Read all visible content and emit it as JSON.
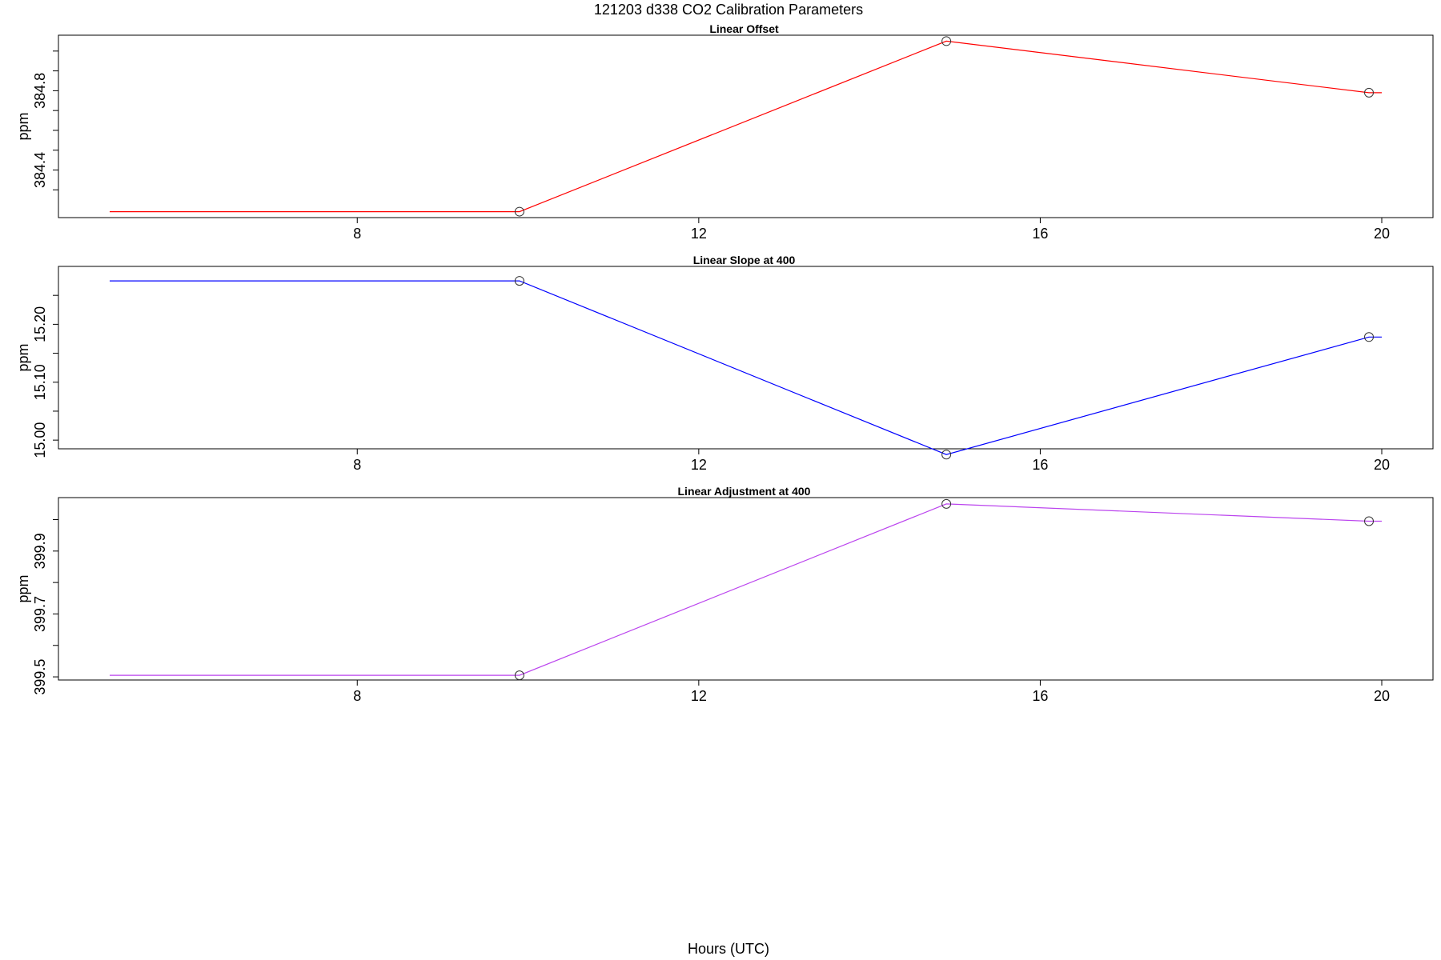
{
  "figure": {
    "title": "121203   d338   CO2 Calibration Parameters",
    "xlabel": "Hours (UTC)"
  },
  "chart_data": [
    {
      "type": "line",
      "title": "Linear Offset",
      "ylabel": "ppm",
      "xlabel": "",
      "xlim": [
        4.5,
        20.6
      ],
      "ylim": [
        384.16,
        385.08
      ],
      "x_ticks": [
        8,
        12,
        16,
        20
      ],
      "x_tick_labels": [
        "8",
        "12",
        "16",
        "20"
      ],
      "y_ticks": [
        384.3,
        384.4,
        384.5,
        384.6,
        384.7,
        384.8,
        384.9,
        385.0
      ],
      "y_tick_labels": [
        "",
        "384.4",
        "",
        "",
        "",
        "384.8",
        "",
        ""
      ],
      "grid": false,
      "series": [
        {
          "color": "#ff0000",
          "x": [
            5.1,
            9.9,
            14.9,
            19.85,
            20.0
          ],
          "y": [
            384.19,
            384.19,
            385.05,
            384.79,
            384.79
          ],
          "markers": [
            false,
            true,
            true,
            true,
            false
          ]
        }
      ]
    },
    {
      "type": "line",
      "title": "Linear Slope at 400",
      "ylabel": "ppm",
      "xlabel": "",
      "xlim": [
        4.5,
        20.6
      ],
      "ylim": [
        14.985,
        15.3
      ],
      "x_ticks": [
        8,
        12,
        16,
        20
      ],
      "x_tick_labels": [
        "8",
        "12",
        "16",
        "20"
      ],
      "y_ticks": [
        15.0,
        15.05,
        15.1,
        15.15,
        15.2,
        15.25
      ],
      "y_tick_labels": [
        "15.00",
        "",
        "15.10",
        "",
        "15.20",
        ""
      ],
      "grid": false,
      "series": [
        {
          "color": "#0000ff",
          "x": [
            5.1,
            9.9,
            14.9,
            19.85,
            20.0
          ],
          "y": [
            15.275,
            15.275,
            14.975,
            15.178,
            15.178
          ],
          "markers": [
            false,
            true,
            true,
            true,
            false
          ]
        }
      ]
    },
    {
      "type": "line",
      "title": "Linear Adjustment at 400",
      "ylabel": "ppm",
      "xlabel": "",
      "xlim": [
        4.5,
        20.6
      ],
      "ylim": [
        399.49,
        400.07
      ],
      "x_ticks": [
        8,
        12,
        16,
        20
      ],
      "x_tick_labels": [
        "8",
        "12",
        "16",
        "20"
      ],
      "y_ticks": [
        399.5,
        399.6,
        399.7,
        399.8,
        399.9,
        400.0
      ],
      "y_tick_labels": [
        "399.5",
        "",
        "399.7",
        "",
        "399.9",
        ""
      ],
      "grid": false,
      "series": [
        {
          "color": "#bb44ee",
          "x": [
            5.1,
            9.9,
            14.9,
            19.85,
            20.0
          ],
          "y": [
            399.505,
            399.505,
            400.05,
            399.995,
            399.995
          ],
          "markers": [
            false,
            true,
            true,
            true,
            false
          ]
        }
      ]
    }
  ]
}
